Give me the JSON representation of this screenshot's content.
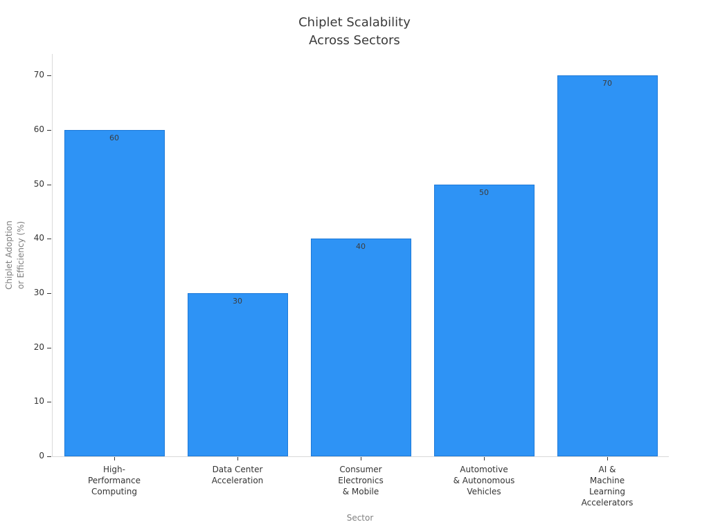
{
  "chart_data": {
    "type": "bar",
    "title": "Chiplet Scalability\nAcross Sectors",
    "xlabel": "Sector",
    "ylabel": "Chiplet Adoption\nor Efficiency (%)",
    "categories": [
      "High-\nPerformance\nComputing",
      "Data Center\nAcceleration",
      "Consumer\nElectronics\n& Mobile",
      "Automotive\n& Autonomous\nVehicles",
      "AI &\nMachine\nLearning\nAccelerators"
    ],
    "values": [
      60,
      30,
      40,
      50,
      70
    ],
    "bar_labels": [
      "60",
      "30",
      "40",
      "50",
      "70"
    ],
    "yticks": [
      0,
      10,
      20,
      30,
      40,
      50,
      60,
      70
    ],
    "ylim": [
      0,
      74
    ],
    "grid": false,
    "legend": "none",
    "bar_color": "#2e93f5",
    "bar_edge_color": "#1d79d8",
    "axis_line_color": "#d9d9d9",
    "tick_color": "#333333",
    "axis_title_color": "#7f7f7f"
  }
}
